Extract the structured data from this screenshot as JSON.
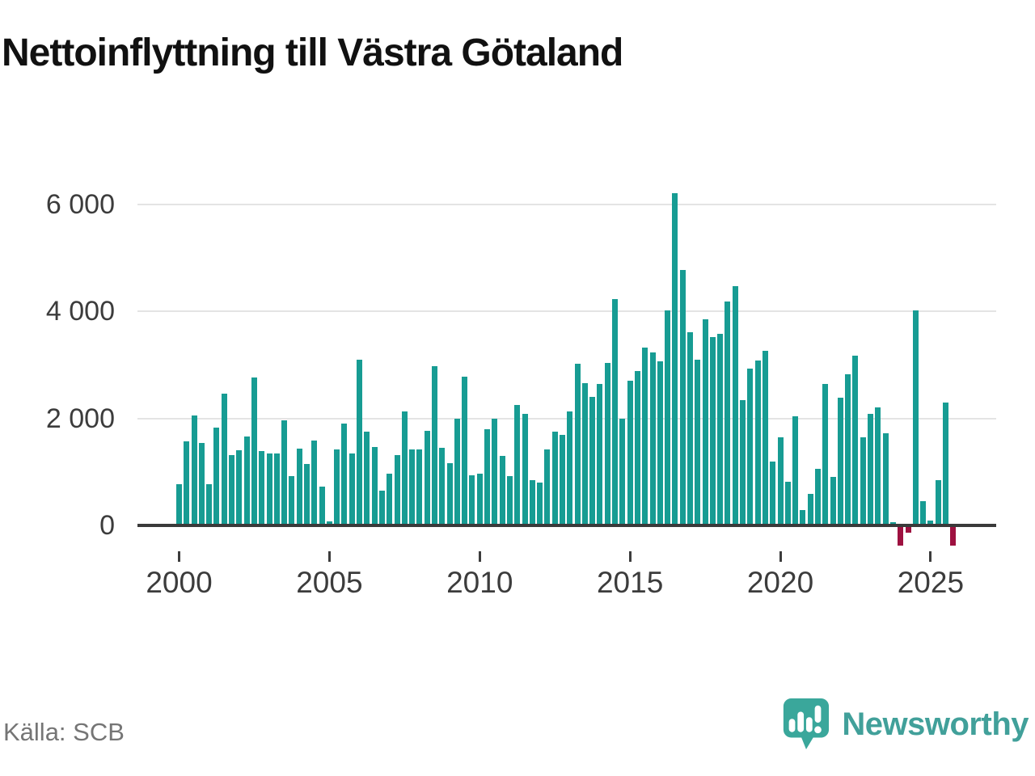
{
  "title": "Nettoinflyttning till Västra Götaland",
  "source_label": "Källa: SCB",
  "brand": {
    "name": "Newsworthy",
    "logo_icon": "newsworthy-bubble-barchart-icon",
    "color": "#41a09a"
  },
  "colors": {
    "bar_positive": "#179c93",
    "bar_negative": "#9e1140",
    "gridline": "#e4e4e4",
    "axis": "#3a3a3a",
    "text": "#3c3c3c"
  },
  "chart_data": {
    "type": "bar",
    "title": "Nettoinflyttning till Västra Götaland",
    "xlabel": "",
    "ylabel": "",
    "x_start": "2000Q1",
    "x_freq": "quarterly",
    "ylim": [
      -500,
      6500
    ],
    "grid": "horizontal",
    "legend": "none",
    "yticks": [
      {
        "value": 0,
        "label": "0"
      },
      {
        "value": 2000,
        "label": "2 000"
      },
      {
        "value": 4000,
        "label": "4 000"
      },
      {
        "value": 6000,
        "label": "6 000"
      }
    ],
    "xticks": [
      {
        "value": 2000,
        "label": "2000"
      },
      {
        "value": 2005,
        "label": "2005"
      },
      {
        "value": 2010,
        "label": "2010"
      },
      {
        "value": 2015,
        "label": "2015"
      },
      {
        "value": 2020,
        "label": "2020"
      },
      {
        "value": 2025,
        "label": "2025"
      }
    ],
    "values": [
      775,
      1565,
      2055,
      1540,
      775,
      1830,
      2460,
      1310,
      1400,
      1665,
      2760,
      1390,
      1350,
      1350,
      1970,
      925,
      1430,
      1145,
      1590,
      720,
      75,
      1425,
      1900,
      1350,
      3095,
      1750,
      1465,
      655,
      960,
      1310,
      2130,
      1415,
      1415,
      1765,
      2980,
      1450,
      1160,
      2000,
      2780,
      930,
      975,
      1800,
      2000,
      1300,
      925,
      2250,
      2085,
      840,
      800,
      1415,
      1750,
      1700,
      2135,
      3030,
      2660,
      2400,
      2650,
      3045,
      4240,
      2000,
      2710,
      2880,
      3320,
      3230,
      3065,
      4025,
      6210,
      4780,
      3620,
      3105,
      3855,
      3520,
      3585,
      4190,
      4470,
      2340,
      2930,
      3090,
      3260,
      1200,
      1650,
      820,
      2035,
      290,
      590,
      1060,
      2640,
      910,
      2390,
      2830,
      3170,
      1650,
      2085,
      2200,
      1730,
      65,
      -380,
      -140,
      4025,
      455,
      85,
      840,
      2300,
      -380
    ]
  }
}
